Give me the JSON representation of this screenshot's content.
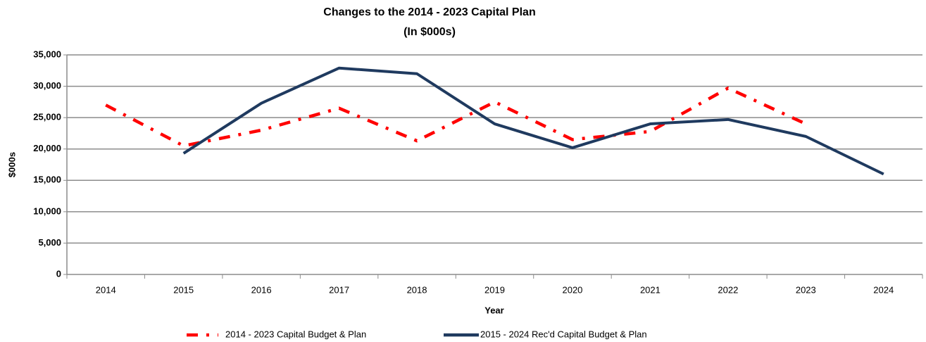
{
  "chart_data": {
    "type": "line",
    "title": "Changes to the 2014 - 2023 Capital Plan",
    "subtitle": "(In $000s)",
    "x_label": "Year",
    "y_label": "$000s",
    "categories": [
      "2014",
      "2015",
      "2016",
      "2017",
      "2018",
      "2019",
      "2020",
      "2021",
      "2022",
      "2023",
      "2024"
    ],
    "series": [
      {
        "name": "2014 - 2023 Capital Budget & Plan",
        "color": "#ff0000",
        "dashed": true,
        "values": [
          27000,
          20500,
          23000,
          26500,
          21300,
          27500,
          21500,
          22800,
          29700,
          24000,
          null
        ]
      },
      {
        "name": "2015 - 2024 Rec'd Capital Budget & Plan",
        "color": "#1f3a5f",
        "dashed": false,
        "values": [
          null,
          19300,
          27300,
          32900,
          32000,
          24000,
          20200,
          24000,
          24700,
          22000,
          16000
        ]
      }
    ],
    "ylim": [
      0,
      35000
    ],
    "yticks": [
      0,
      {
        "value": 5000,
        "label": "5,000"
      },
      {
        "value": 10000,
        "label": "10,000"
      },
      {
        "value": 15000,
        "label": "15,000"
      },
      {
        "value": 20000,
        "label": "20,000"
      },
      {
        "value": 25000,
        "label": "25,000"
      },
      {
        "value": 30000,
        "label": "30,000"
      },
      {
        "value": 35000,
        "label": "35,000"
      }
    ],
    "grid": true,
    "legend": "bottom"
  }
}
